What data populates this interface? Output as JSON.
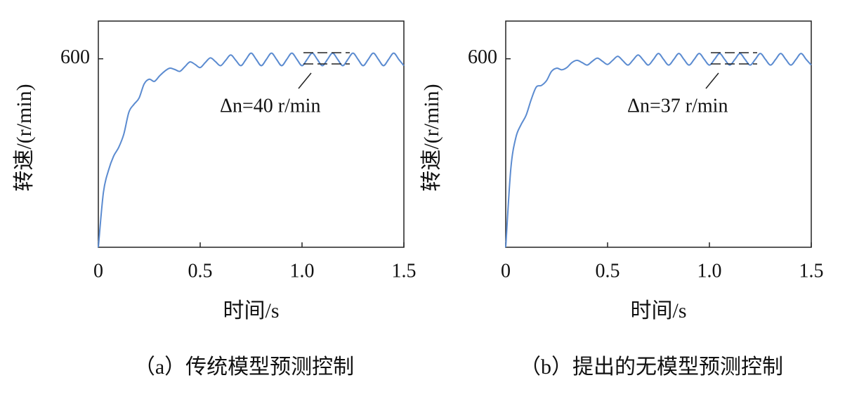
{
  "chart_data": [
    {
      "type": "line",
      "caption": "（a）传统模型预测控制",
      "xlabel": "时间/s",
      "ylabel": "转速/(r/min)",
      "annotation": "Δn=40 r/min",
      "xlim": [
        0,
        1.5
      ],
      "xticks": [
        0,
        0.5,
        {
          "value": 1,
          "label": "1.0"
        },
        1.5
      ],
      "ylim": [
        0,
        720
      ],
      "yticks": [
        600
      ],
      "series": [
        {
          "color": "#5b8bd0",
          "x": [
            0,
            0.025,
            0.05,
            0.075,
            0.1,
            0.125,
            0.15,
            0.175,
            0.2,
            0.225,
            0.25,
            0.275,
            0.3,
            0.325,
            0.35,
            0.375,
            0.4,
            0.425,
            0.45,
            0.475,
            0.5,
            0.525,
            0.55,
            0.575,
            0.6,
            0.625,
            0.65,
            0.675,
            0.7,
            0.725,
            0.75,
            0.775,
            0.8,
            0.825,
            0.85,
            0.875,
            0.9,
            0.925,
            0.95,
            0.975,
            1,
            1.025,
            1.05,
            1.075,
            1.1,
            1.125,
            1.15,
            1.175,
            1.2,
            1.225,
            1.25,
            1.275,
            1.3,
            1.325,
            1.35,
            1.375,
            1.4,
            1.425,
            1.45,
            1.475,
            1.5
          ],
          "values": [
            0,
            175,
            245,
            290,
            318,
            360,
            430,
            455,
            475,
            520,
            535,
            528,
            545,
            560,
            570,
            566,
            560,
            575,
            590,
            582,
            572,
            588,
            603,
            591,
            578,
            595,
            612,
            595,
            578,
            598,
            618,
            598,
            578,
            598,
            618,
            598,
            578,
            598,
            618,
            598,
            578,
            598,
            618,
            598,
            578,
            598,
            618,
            598,
            578,
            598,
            618,
            598,
            578,
            598,
            618,
            598,
            578,
            598,
            618,
            598,
            578
          ]
        }
      ]
    },
    {
      "type": "line",
      "caption": "（b）提出的无模型预测控制",
      "xlabel": "时间/s",
      "ylabel": "转速/(r/min)",
      "annotation": "Δn=37 r/min",
      "xlim": [
        0,
        1.5
      ],
      "xticks": [
        0,
        0.5,
        {
          "value": 1,
          "label": "1.0"
        },
        1.5
      ],
      "ylim": [
        0,
        720
      ],
      "yticks": [
        600
      ],
      "series": [
        {
          "color": "#5b8bd0",
          "x": [
            0,
            0.025,
            0.05,
            0.075,
            0.1,
            0.125,
            0.15,
            0.175,
            0.2,
            0.225,
            0.25,
            0.275,
            0.3,
            0.325,
            0.35,
            0.375,
            0.4,
            0.425,
            0.45,
            0.475,
            0.5,
            0.525,
            0.55,
            0.575,
            0.6,
            0.625,
            0.65,
            0.675,
            0.7,
            0.725,
            0.75,
            0.775,
            0.8,
            0.825,
            0.85,
            0.875,
            0.9,
            0.925,
            0.95,
            0.975,
            1,
            1.025,
            1.05,
            1.075,
            1.1,
            1.125,
            1.15,
            1.175,
            1.2,
            1.225,
            1.25,
            1.275,
            1.3,
            1.325,
            1.35,
            1.375,
            1.4,
            1.425,
            1.45,
            1.475,
            1.5
          ],
          "values": [
            0,
            250,
            350,
            390,
            420,
            470,
            510,
            515,
            530,
            560,
            570,
            565,
            572,
            588,
            595,
            588,
            580,
            592,
            602,
            592,
            582,
            595,
            608,
            594,
            580,
            596,
            612,
            596,
            580,
            598,
            617,
            598,
            580,
            598,
            617,
            598,
            580,
            598,
            617,
            598,
            580,
            598,
            617,
            598,
            580,
            598,
            617,
            598,
            580,
            598,
            617,
            598,
            580,
            598,
            617,
            598,
            580,
            598,
            617,
            598,
            580
          ]
        }
      ]
    }
  ]
}
